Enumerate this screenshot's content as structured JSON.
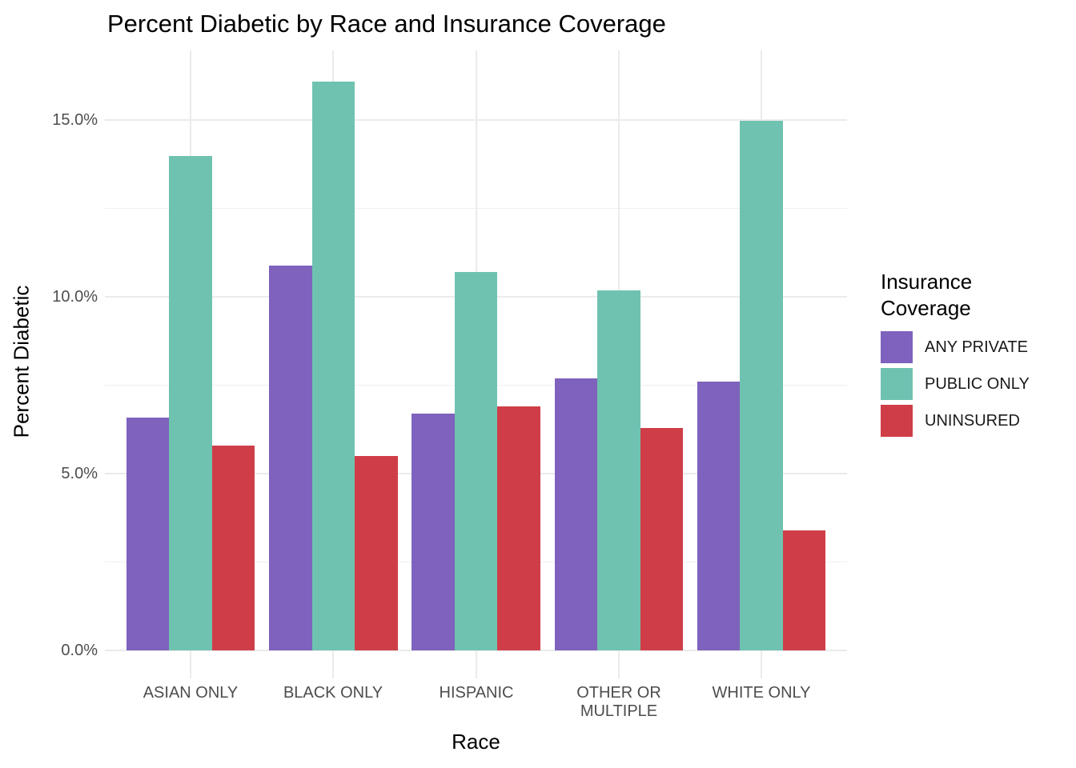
{
  "chart_data": {
    "type": "bar",
    "title": "Percent Diabetic by Race and Insurance Coverage",
    "xlabel": "Race",
    "ylabel": "Percent Diabetic",
    "categories": [
      "ASIAN ONLY",
      "BLACK ONLY",
      "HISPANIC",
      "OTHER OR MULTIPLE",
      "WHITE ONLY"
    ],
    "series": [
      {
        "name": "ANY PRIVATE",
        "color": "#7E62BD",
        "values": [
          6.6,
          10.9,
          6.7,
          7.7,
          7.6
        ]
      },
      {
        "name": "PUBLIC ONLY",
        "color": "#6FC2B0",
        "values": [
          14.0,
          16.1,
          10.7,
          10.2,
          15.0
        ]
      },
      {
        "name": "UNINSURED",
        "color": "#CF3E48",
        "values": [
          5.8,
          5.5,
          6.9,
          6.3,
          3.4
        ]
      }
    ],
    "y_tick_labels": [
      "0.0%",
      "5.0%",
      "10.0%",
      "15.0%"
    ],
    "y_tick_values": [
      0,
      5,
      10,
      15
    ],
    "y_minor_values": [
      2.5,
      7.5,
      12.5
    ],
    "ylim": [
      0,
      17
    ],
    "grid": {
      "major": true,
      "minor": true,
      "major_color": "#EBEBEB",
      "minor_color": "#F0F0F0"
    },
    "legend_title": "Insurance Coverage",
    "legend_position": "right",
    "background_color": "#FFFFFF",
    "axis_text_color": "#4D4D4D",
    "title_color": "#000000"
  }
}
